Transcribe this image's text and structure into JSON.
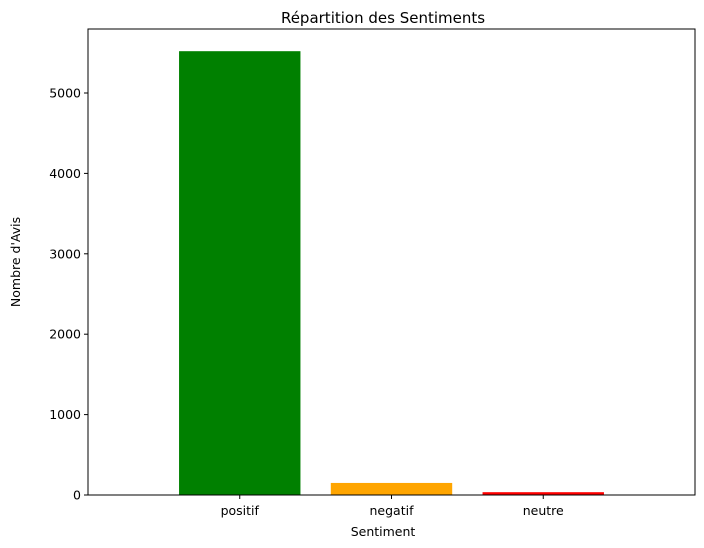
{
  "chart_data": {
    "type": "bar",
    "title": "Répartition des Sentiments",
    "xlabel": "Sentiment",
    "ylabel": "Nombre d'Avis",
    "categories": [
      "positif",
      "negatif",
      "neutre"
    ],
    "values": [
      5520,
      150,
      35
    ],
    "colors": [
      "#008000",
      "#ffa500",
      "#ff0000"
    ],
    "ylim": [
      0,
      5796
    ],
    "yticks": [
      0,
      1000,
      2000,
      3000,
      4000,
      5000
    ],
    "grid": false,
    "legend": "none"
  }
}
